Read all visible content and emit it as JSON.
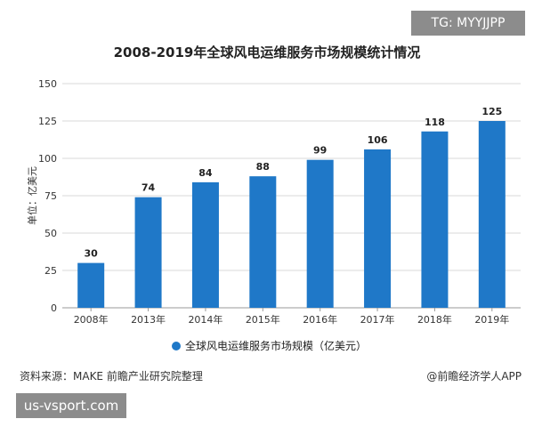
{
  "tag_text": "TG: MYYJJPP",
  "source_text": "资料来源：MAKE 前瞻产业研究院整理",
  "credit_text": "@前瞻经济学人APP",
  "site_text": "us-vsport.com",
  "chart_data": {
    "type": "bar",
    "title": "2008-2019年全球风电运维服务市场规模统计情况",
    "xlabel": "",
    "ylabel": "单位：亿美元",
    "categories": [
      "2008年",
      "2013年",
      "2014年",
      "2015年",
      "2016年",
      "2017年",
      "2018年",
      "2019年"
    ],
    "series": [
      {
        "name": "全球风电运维服务市场规模（亿美元）",
        "values": [
          30,
          74,
          84,
          88,
          99,
          106,
          118,
          125
        ]
      }
    ],
    "ylim": [
      0,
      150
    ],
    "yticks": [
      0,
      25,
      50,
      75,
      100,
      125,
      150
    ],
    "grid": true,
    "legend": "bottom",
    "bar_color": "#1f78c8",
    "data_labels": true
  }
}
